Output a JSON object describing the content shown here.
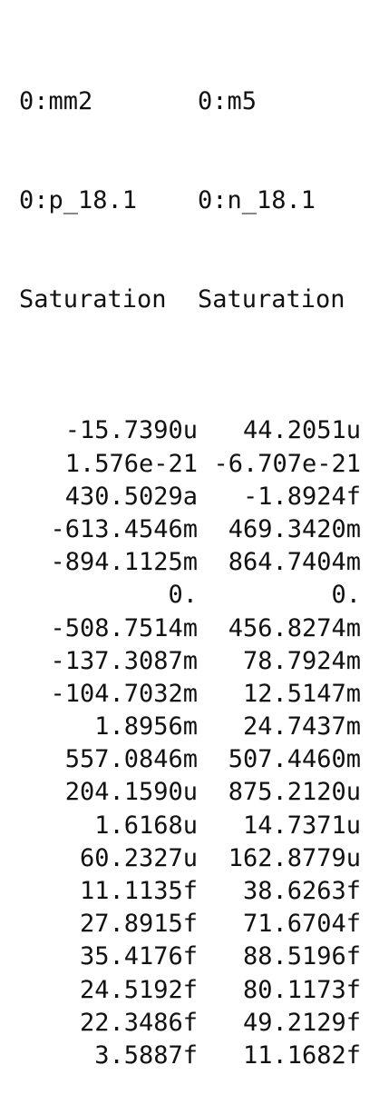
{
  "columns": [
    {
      "header": [
        "0:mm2",
        "0:p_18.1",
        "Saturation"
      ],
      "values": [
        "-15.7390u",
        "1.576e-21",
        "430.5029a",
        "-613.4546m",
        "-894.1125m",
        "0.",
        "-508.7514m",
        "-137.3087m",
        "-104.7032m",
        "1.8956m",
        "557.0846m",
        "204.1590u",
        "1.6168u",
        "60.2327u",
        "11.1135f",
        "27.8915f",
        "35.4176f",
        "24.5192f",
        "22.3486f",
        "3.5887f"
      ]
    },
    {
      "header": [
        "0:m5",
        "0:n_18.1",
        "Saturation"
      ],
      "values": [
        "44.2051u",
        "-6.707e-21",
        "-1.8924f",
        "469.3420m",
        "864.7404m",
        "0.",
        "456.8274m",
        "78.7924m",
        "12.5147m",
        "24.7437m",
        "507.4460m",
        "875.2120u",
        "14.7371u",
        "162.8779u",
        "38.6263f",
        "71.6704f",
        "88.5196f",
        "80.1173f",
        "49.2129f",
        "11.1682f"
      ]
    }
  ]
}
